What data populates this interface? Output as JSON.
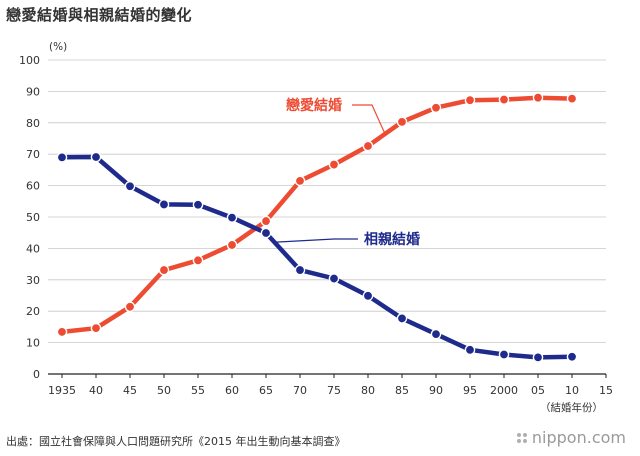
{
  "title": "戀愛結婚與相親結婚的變化",
  "source": "出處：國立社會保障與人口問題研究所《2015 年出生動向基本調查》",
  "brand": "nippon.com",
  "chart_data": {
    "type": "line",
    "y_unit_label": "(%)",
    "x_unit_label": "（結婚年份）",
    "ylim": [
      0,
      100
    ],
    "yticks": [
      0,
      10,
      20,
      30,
      40,
      50,
      60,
      70,
      80,
      90,
      100
    ],
    "xlim": [
      1930,
      2015
    ],
    "xticks": [
      {
        "value": 1935,
        "label": "1935"
      },
      {
        "value": 1940,
        "label": "40"
      },
      {
        "value": 1945,
        "label": "45"
      },
      {
        "value": 1950,
        "label": "50"
      },
      {
        "value": 1955,
        "label": "55"
      },
      {
        "value": 1960,
        "label": "60"
      },
      {
        "value": 1965,
        "label": "65"
      },
      {
        "value": 1970,
        "label": "70"
      },
      {
        "value": 1975,
        "label": "75"
      },
      {
        "value": 1980,
        "label": "80"
      },
      {
        "value": 1985,
        "label": "85"
      },
      {
        "value": 1990,
        "label": "90"
      },
      {
        "value": 1995,
        "label": "95"
      },
      {
        "value": 2000,
        "label": "2000"
      },
      {
        "value": 2005,
        "label": "05"
      },
      {
        "value": 2010,
        "label": "10"
      },
      {
        "value": 2015,
        "label": "15"
      }
    ],
    "grid": true,
    "series": [
      {
        "name": "戀愛結婚",
        "color": "#ee4b33",
        "points": [
          {
            "x": 1935,
            "y": 13.4
          },
          {
            "x": 1940,
            "y": 14.6
          },
          {
            "x": 1945,
            "y": 21.4
          },
          {
            "x": 1950,
            "y": 33.1
          },
          {
            "x": 1955,
            "y": 36.2
          },
          {
            "x": 1960,
            "y": 41.1
          },
          {
            "x": 1965,
            "y": 48.7
          },
          {
            "x": 1970,
            "y": 61.5
          },
          {
            "x": 1975,
            "y": 66.7
          },
          {
            "x": 1980,
            "y": 72.6
          },
          {
            "x": 1985,
            "y": 80.3
          },
          {
            "x": 1990,
            "y": 84.8
          },
          {
            "x": 1995,
            "y": 87.2
          },
          {
            "x": 2000,
            "y": 87.4
          },
          {
            "x": 2005,
            "y": 88.0
          },
          {
            "x": 2010,
            "y": 87.7
          }
        ]
      },
      {
        "name": "相親結婚",
        "color": "#1e2a8c",
        "points": [
          {
            "x": 1935,
            "y": 69.0
          },
          {
            "x": 1940,
            "y": 69.1
          },
          {
            "x": 1945,
            "y": 59.8
          },
          {
            "x": 1950,
            "y": 54.0
          },
          {
            "x": 1955,
            "y": 53.9
          },
          {
            "x": 1960,
            "y": 49.8
          },
          {
            "x": 1965,
            "y": 44.9
          },
          {
            "x": 1970,
            "y": 33.1
          },
          {
            "x": 1975,
            "y": 30.4
          },
          {
            "x": 1980,
            "y": 24.9
          },
          {
            "x": 1985,
            "y": 17.7
          },
          {
            "x": 1990,
            "y": 12.7
          },
          {
            "x": 1995,
            "y": 7.7
          },
          {
            "x": 2000,
            "y": 6.2
          },
          {
            "x": 2005,
            "y": 5.3
          },
          {
            "x": 2010,
            "y": 5.5
          }
        ]
      }
    ]
  }
}
